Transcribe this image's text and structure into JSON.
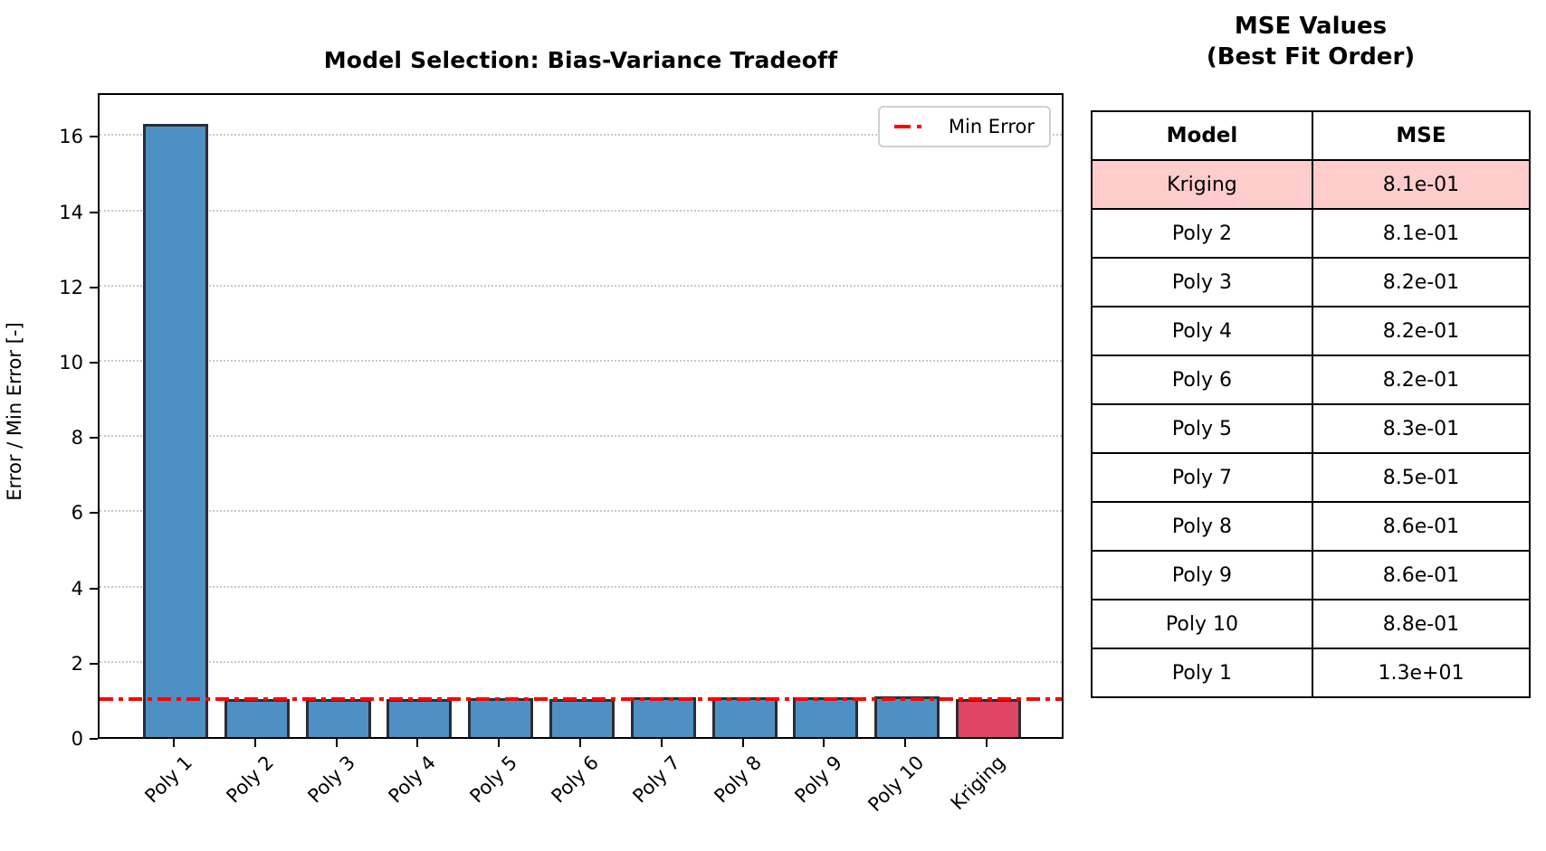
{
  "chart": {
    "title": "Model Selection: Bias-Variance Tradeoff",
    "ylabel": "Error / Min Error [-]",
    "legend_label": "Min Error"
  },
  "chart_data": {
    "type": "bar",
    "title": "Model Selection: Bias-Variance Tradeoff",
    "xlabel": "",
    "ylabel": "Error / Min Error [-]",
    "categories": [
      "Poly 1",
      "Poly 2",
      "Poly 3",
      "Poly 4",
      "Poly 5",
      "Poly 6",
      "Poly 7",
      "Poly 8",
      "Poly 9",
      "Poly 10",
      "Kriging"
    ],
    "values": [
      16.3,
      1.0,
      1.01,
      1.02,
      1.03,
      1.02,
      1.05,
      1.06,
      1.07,
      1.09,
      1.0
    ],
    "yticks": [
      0,
      2,
      4,
      6,
      8,
      10,
      12,
      14,
      16
    ],
    "ylim": [
      0,
      17.15
    ],
    "grid": "horizontal-dotted",
    "min_error_line_y": 1.0,
    "legend": [
      "Min Error"
    ],
    "legend_position": "upper right",
    "bar_color": "#4e90c3",
    "highlight_bar_color": "#df4566",
    "highlight_index": 10,
    "bar_edge_color": "#2b2d35",
    "line_color": "#ff0000"
  },
  "table": {
    "title_line1": "MSE Values",
    "title_line2": "(Best Fit Order)",
    "headers": [
      "Model",
      "MSE"
    ],
    "highlight_color": "#ffcccc",
    "rows": [
      {
        "model": "Kriging",
        "mse": "8.1e-01",
        "highlight": true
      },
      {
        "model": "Poly 2",
        "mse": "8.1e-01",
        "highlight": false
      },
      {
        "model": "Poly 3",
        "mse": "8.2e-01",
        "highlight": false
      },
      {
        "model": "Poly 4",
        "mse": "8.2e-01",
        "highlight": false
      },
      {
        "model": "Poly 6",
        "mse": "8.2e-01",
        "highlight": false
      },
      {
        "model": "Poly 5",
        "mse": "8.3e-01",
        "highlight": false
      },
      {
        "model": "Poly 7",
        "mse": "8.5e-01",
        "highlight": false
      },
      {
        "model": "Poly 8",
        "mse": "8.6e-01",
        "highlight": false
      },
      {
        "model": "Poly 9",
        "mse": "8.6e-01",
        "highlight": false
      },
      {
        "model": "Poly 10",
        "mse": "8.8e-01",
        "highlight": false
      },
      {
        "model": "Poly 1",
        "mse": "1.3e+01",
        "highlight": false
      }
    ]
  }
}
